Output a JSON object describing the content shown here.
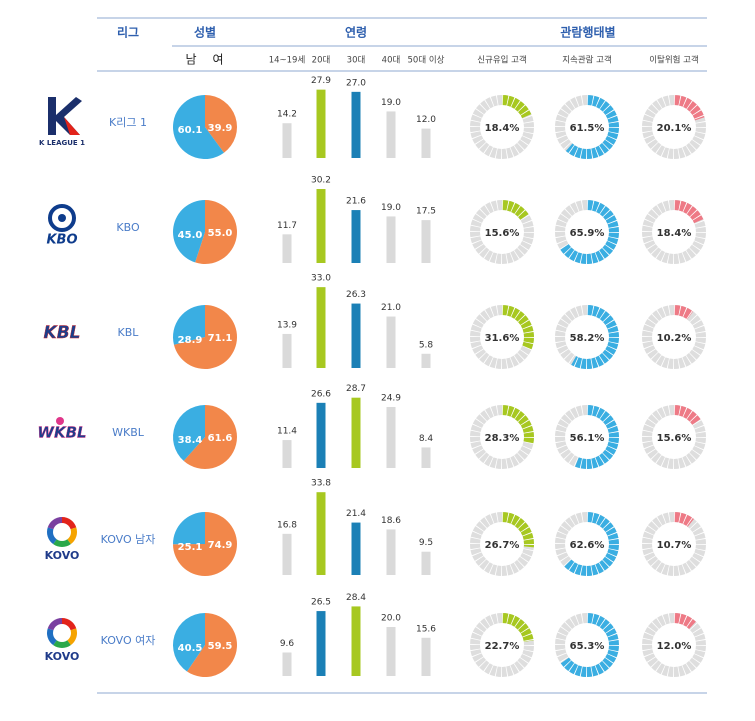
{
  "header": {
    "league": "리그",
    "gender": "성별",
    "age": "연령",
    "behavior": "관람행태별",
    "gender_sub": [
      "남",
      "여"
    ],
    "age_groups": [
      "14~19세",
      "20대",
      "30대",
      "40대",
      "50대 이상"
    ],
    "behavior_groups": [
      "신규유입 고객",
      "지속관람 고객",
      "이탈위험 고객"
    ]
  },
  "colors": {
    "male": "#3aaee2",
    "female": "#f2874a",
    "top": "#a7c820",
    "second": "#1b80b6",
    "other": "#dadada",
    "behavior": [
      "#a7c820",
      "#3aaee2",
      "#ee7a86"
    ],
    "track": "#dedede"
  },
  "rows": [
    {
      "logo": "K LEAGUE 1",
      "name": "K리그 1",
      "gender": [
        60.1,
        39.9
      ],
      "gender_labels": [
        "60.1",
        "39.9"
      ],
      "age": [
        14.2,
        27.9,
        27.0,
        19.0,
        12.0
      ],
      "age_labels": [
        "14.2",
        "27.9",
        "27.0",
        "19.0",
        "12.0"
      ],
      "behavior": [
        18.4,
        61.5,
        20.1
      ],
      "behavior_labels": [
        "18.4%",
        "61.5%",
        "20.1%"
      ]
    },
    {
      "logo": "KBO",
      "name": "KBO",
      "gender": [
        45.0,
        55.0
      ],
      "gender_labels": [
        "45.0",
        "55.0"
      ],
      "age": [
        11.7,
        30.2,
        21.6,
        19.0,
        17.5
      ],
      "age_labels": [
        "11.7",
        "30.2",
        "21.6",
        "19.0",
        "17.5"
      ],
      "behavior": [
        15.6,
        65.9,
        18.4
      ],
      "behavior_labels": [
        "15.6%",
        "65.9%",
        "18.4%"
      ]
    },
    {
      "logo": "KBL",
      "name": "KBL",
      "gender": [
        28.9,
        71.1
      ],
      "gender_labels": [
        "28.9",
        "71.1"
      ],
      "age": [
        13.9,
        33.0,
        26.3,
        21.0,
        5.8
      ],
      "age_labels": [
        "13.9",
        "33.0",
        "26.3",
        "21.0",
        "5.8"
      ],
      "behavior": [
        31.6,
        58.2,
        10.2
      ],
      "behavior_labels": [
        "31.6%",
        "58.2%",
        "10.2%"
      ]
    },
    {
      "logo": "WKBL",
      "name": "WKBL",
      "gender": [
        38.4,
        61.6
      ],
      "gender_labels": [
        "38.4",
        "61.6"
      ],
      "age": [
        11.4,
        26.6,
        28.7,
        24.9,
        8.4
      ],
      "age_labels": [
        "11.4",
        "26.6",
        "28.7",
        "24.9",
        "8.4"
      ],
      "behavior": [
        28.3,
        56.1,
        15.6
      ],
      "behavior_labels": [
        "28.3%",
        "56.1%",
        "15.6%"
      ]
    },
    {
      "logo": "KOVO",
      "name": "KOVO 남자",
      "gender": [
        25.1,
        74.9
      ],
      "gender_labels": [
        "25.1",
        "74.9"
      ],
      "age": [
        16.8,
        33.8,
        21.4,
        18.6,
        9.5
      ],
      "age_labels": [
        "16.8",
        "33.8",
        "21.4",
        "18.6",
        "9.5"
      ],
      "behavior": [
        26.7,
        62.6,
        10.7
      ],
      "behavior_labels": [
        "26.7%",
        "62.6%",
        "10.7%"
      ]
    },
    {
      "logo": "KOVO",
      "name": "KOVO 여자",
      "gender": [
        40.5,
        59.5
      ],
      "gender_labels": [
        "40.5",
        "59.5"
      ],
      "age": [
        9.6,
        26.5,
        28.4,
        20.0,
        15.6
      ],
      "age_labels": [
        "9.6",
        "26.5",
        "28.4",
        "20.0",
        "15.6"
      ],
      "behavior": [
        22.7,
        65.3,
        12.0
      ],
      "behavior_labels": [
        "22.7%",
        "65.3%",
        "12.0%"
      ]
    }
  ]
}
